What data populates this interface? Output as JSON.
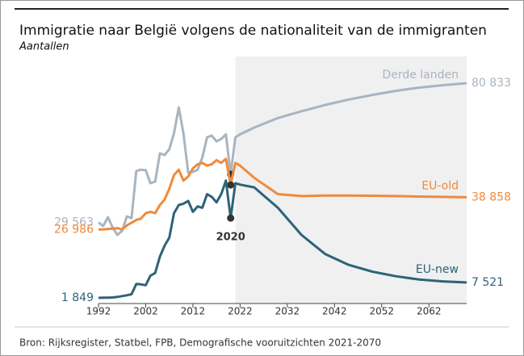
{
  "chart_data": {
    "type": "line",
    "title": "Immigratie naar België volgens de nationaliteit van de immigranten",
    "subtitle": "Aantallen",
    "source": "Bron: Rijksregister, Statbel, FPB, Demografische vooruitzichten 2021-2070",
    "annotation": {
      "x": 2020,
      "text": "2020"
    },
    "projection_start": 2021,
    "x": [
      1992,
      1993,
      1994,
      1995,
      1996,
      1997,
      1998,
      1999,
      2000,
      2001,
      2002,
      2003,
      2004,
      2005,
      2006,
      2007,
      2008,
      2009,
      2010,
      2011,
      2012,
      2013,
      2014,
      2015,
      2016,
      2017,
      2018,
      2019,
      2020,
      2021,
      2022,
      2025,
      2030,
      2035,
      2040,
      2045,
      2050,
      2055,
      2060,
      2065,
      2070
    ],
    "xlim": [
      1992,
      2070
    ],
    "xticks": [
      1992,
      2002,
      2012,
      2022,
      2032,
      2042,
      2052,
      2062
    ],
    "series": [
      {
        "name": "Derde landen",
        "color": "#a9b4c0",
        "values": [
          29563,
          28300,
          31500,
          27700,
          25000,
          26500,
          31800,
          31200,
          48500,
          49000,
          48800,
          44000,
          44600,
          55000,
          54400,
          56500,
          62400,
          71900,
          62400,
          47900,
          48200,
          49000,
          53500,
          60900,
          61500,
          59400,
          60300,
          62000,
          47300,
          60900,
          62000,
          64500,
          68000,
          70500,
          72800,
          74800,
          76500,
          78000,
          79200,
          80100,
          80833
        ],
        "value_labels": [
          "29 563",
          null,
          null,
          null,
          null,
          null,
          null,
          null,
          null,
          null,
          null,
          null,
          null,
          null,
          null,
          null,
          null,
          null,
          null,
          null,
          null,
          null,
          null,
          null,
          null,
          null,
          null,
          null,
          null,
          null,
          null,
          null,
          null,
          null,
          null,
          null,
          null,
          null,
          null,
          null,
          "80 833"
        ]
      },
      {
        "name": "EU-old",
        "color": "#f08a3c",
        "values": [
          26986,
          27000,
          27200,
          27300,
          27500,
          27000,
          28500,
          29500,
          30500,
          31000,
          33000,
          33500,
          33000,
          36000,
          38000,
          42000,
          47000,
          49000,
          45000,
          46500,
          49500,
          51000,
          51500,
          50500,
          51000,
          52500,
          51500,
          53000,
          43400,
          51500,
          50500,
          46000,
          40000,
          39300,
          39500,
          39500,
          39400,
          39300,
          39100,
          39000,
          38858
        ],
        "value_labels": [
          "26 986",
          null,
          null,
          null,
          null,
          null,
          null,
          null,
          null,
          null,
          null,
          null,
          null,
          null,
          null,
          null,
          null,
          null,
          null,
          null,
          null,
          null,
          null,
          null,
          null,
          null,
          null,
          null,
          null,
          null,
          null,
          null,
          null,
          null,
          null,
          null,
          null,
          null,
          null,
          null,
          "38 858"
        ]
      },
      {
        "name": "EU-new",
        "color": "#2e6378",
        "values": [
          1849,
          1900,
          1900,
          2000,
          2200,
          2500,
          2800,
          3200,
          7000,
          6800,
          6500,
          10000,
          11000,
          17000,
          21000,
          24000,
          33000,
          36000,
          36500,
          37500,
          33500,
          35500,
          35000,
          40000,
          39000,
          37000,
          40000,
          45000,
          31200,
          44000,
          43500,
          42500,
          35000,
          25000,
          18000,
          14000,
          11500,
          9800,
          8600,
          7900,
          7521
        ],
        "value_labels": [
          "1 849",
          null,
          null,
          null,
          null,
          null,
          null,
          null,
          null,
          null,
          null,
          null,
          null,
          null,
          null,
          null,
          null,
          null,
          null,
          null,
          null,
          null,
          null,
          null,
          null,
          null,
          null,
          null,
          null,
          null,
          null,
          null,
          null,
          null,
          null,
          null,
          null,
          null,
          null,
          null,
          "7 521"
        ]
      }
    ]
  }
}
